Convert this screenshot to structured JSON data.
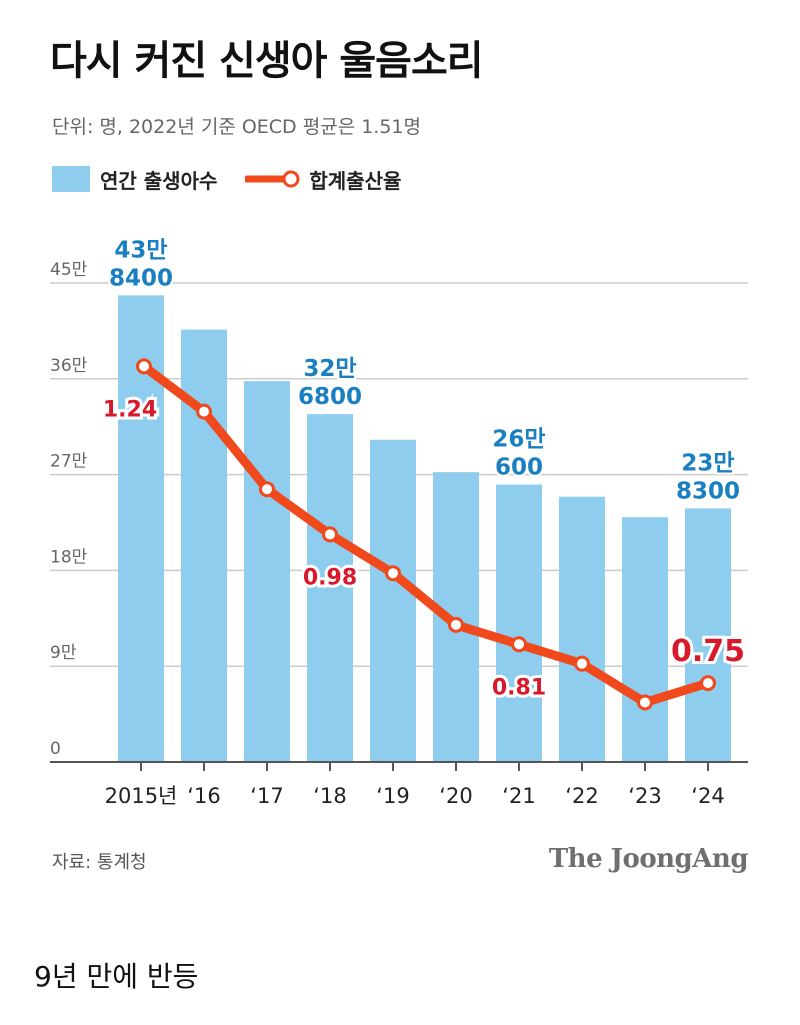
{
  "title": "다시 커진 신생아 울음소리",
  "unit_note": "단위: 명, 2022년 기준 OECD 평균은 1.51명",
  "source": "자료: 통계청",
  "brand": "The JoongAng",
  "caption": "9년 만에 반등",
  "colors": {
    "bar": "#8fcdef",
    "line": "#f04a1c",
    "bar_label": "#1a7fc0",
    "rate_label": "#d7192b",
    "grid": "#cccccc",
    "axis": "#555555"
  },
  "chart_data": {
    "type": "bar",
    "categories": [
      "2015년",
      "‘16",
      "‘17",
      "‘18",
      "‘19",
      "‘20",
      "‘21",
      "‘22",
      "‘23",
      "‘24"
    ],
    "y_ticks": [
      "0",
      "9만",
      "18만",
      "27만",
      "36만",
      "45만"
    ],
    "ylim": [
      0,
      450000
    ],
    "series": [
      {
        "name": "연간 출생아수",
        "type": "bar",
        "axis": "left",
        "values": [
          438400,
          406200,
          357800,
          326800,
          302700,
          272300,
          260600,
          249200,
          230000,
          238300
        ]
      },
      {
        "name": "합계출산율",
        "type": "line",
        "axis": "right",
        "values": [
          1.24,
          1.17,
          1.05,
          0.98,
          0.92,
          0.84,
          0.81,
          0.78,
          0.72,
          0.75
        ]
      }
    ],
    "rate_axis_range": [
      0.6,
      1.4
    ],
    "bar_labels": [
      {
        "index": 0,
        "lines": [
          "43만",
          "8400"
        ]
      },
      {
        "index": 3,
        "lines": [
          "32만",
          "6800"
        ]
      },
      {
        "index": 6,
        "lines": [
          "26만",
          "600"
        ]
      },
      {
        "index": 9,
        "lines": [
          "23만",
          "8300"
        ]
      }
    ],
    "rate_labels": [
      {
        "index": 0,
        "text": "1.24",
        "emphasis": false
      },
      {
        "index": 3,
        "text": "0.98",
        "emphasis": false
      },
      {
        "index": 6,
        "text": "0.81",
        "emphasis": false
      },
      {
        "index": 9,
        "text": "0.75",
        "emphasis": true
      }
    ],
    "legend_position": "top-left",
    "grid": true
  }
}
